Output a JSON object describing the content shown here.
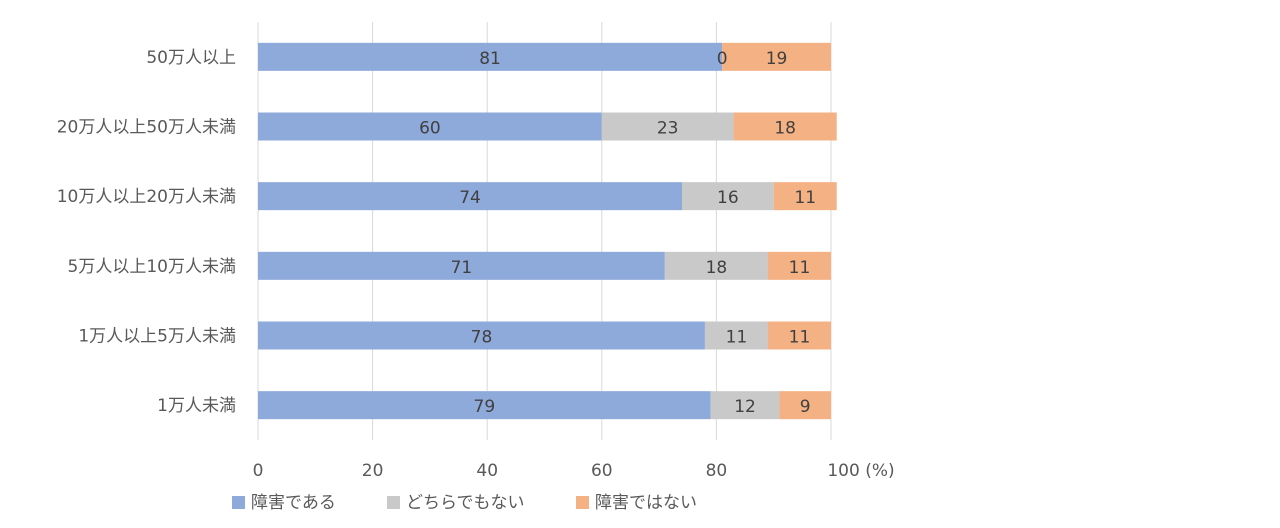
{
  "chart_data": {
    "type": "bar",
    "orientation": "horizontal",
    "stacked": true,
    "categories": [
      "50万人以上",
      "20万人以上50万人未満",
      "10万人以上20万人未満",
      "5万人以上10万人未満",
      "1万人以上5万人未満",
      "1万人未満"
    ],
    "series": [
      {
        "name": "障害である",
        "color": "#8eaadb",
        "values": [
          81,
          60,
          74,
          71,
          78,
          79
        ]
      },
      {
        "name": "どちらでもない",
        "color": "#c9c9c9",
        "values": [
          0,
          23,
          16,
          18,
          11,
          12
        ]
      },
      {
        "name": "障害ではない",
        "color": "#f4b183",
        "values": [
          19,
          18,
          11,
          11,
          11,
          9
        ]
      }
    ],
    "xlim": [
      0,
      100
    ],
    "xticks": [
      0,
      20,
      40,
      60,
      80,
      100
    ],
    "x_unit": "(%)",
    "grid": true,
    "legend_position": "bottom"
  }
}
